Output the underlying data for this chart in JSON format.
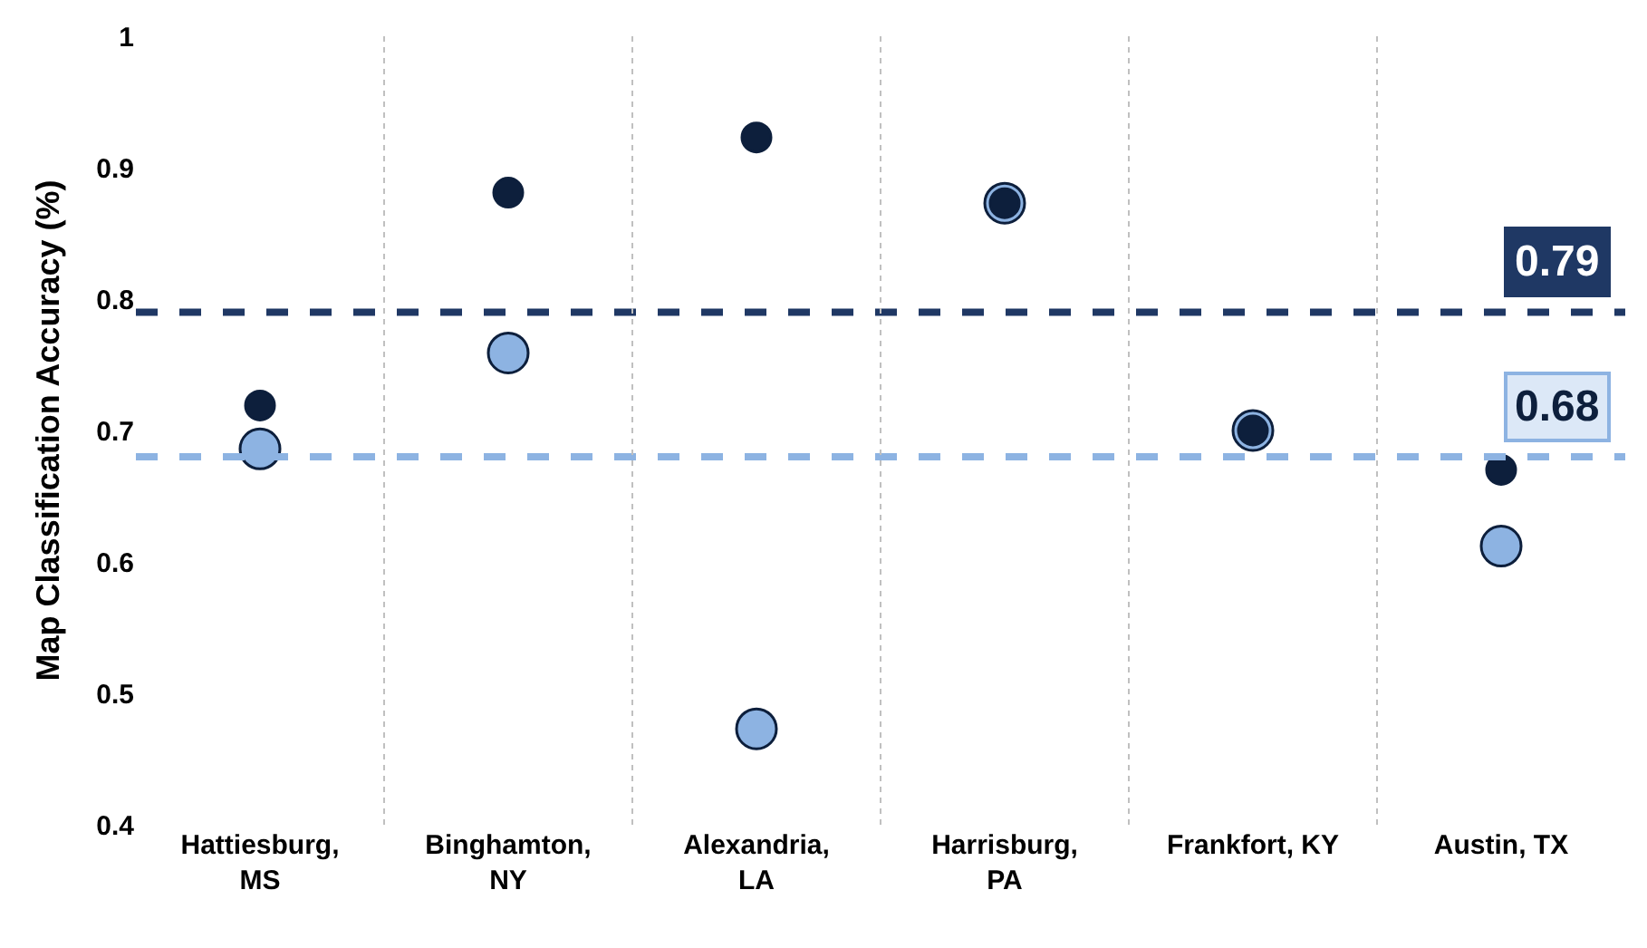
{
  "chart_data": {
    "type": "scatter",
    "ylabel": "Map Classification Accuracy (%)",
    "categories": [
      "Hattiesburg,\nMS",
      "Binghamton,\nNY",
      "Alexandria,\nLA",
      "Harrisburg,\nPA",
      "Frankfort, KY",
      "Austin, TX"
    ],
    "series": [
      {
        "color": "#8db3e2",
        "values": [
          0.686,
          0.759,
          0.473,
          0.873,
          0.7,
          0.612
        ]
      },
      {
        "color": "#0d1f3c",
        "values": [
          0.719,
          0.881,
          0.923,
          0.873,
          0.7,
          0.67
        ]
      }
    ],
    "ylim": [
      0.4,
      1
    ],
    "yticks": [
      0.4,
      0.5,
      0.6,
      0.7,
      0.8,
      0.9,
      {
        "value": 1,
        "label": "1"
      }
    ],
    "ref_lines": [
      {
        "axis": "y",
        "value": 0.79,
        "label": "0.79",
        "color": "#1f3864",
        "line_style": "dashed"
      },
      {
        "axis": "y",
        "value": 0.68,
        "label": "0.68",
        "color": "#8db3e2",
        "line_style": "dashed"
      }
    ],
    "grid": "x",
    "marker": "circle",
    "legend": false
  }
}
